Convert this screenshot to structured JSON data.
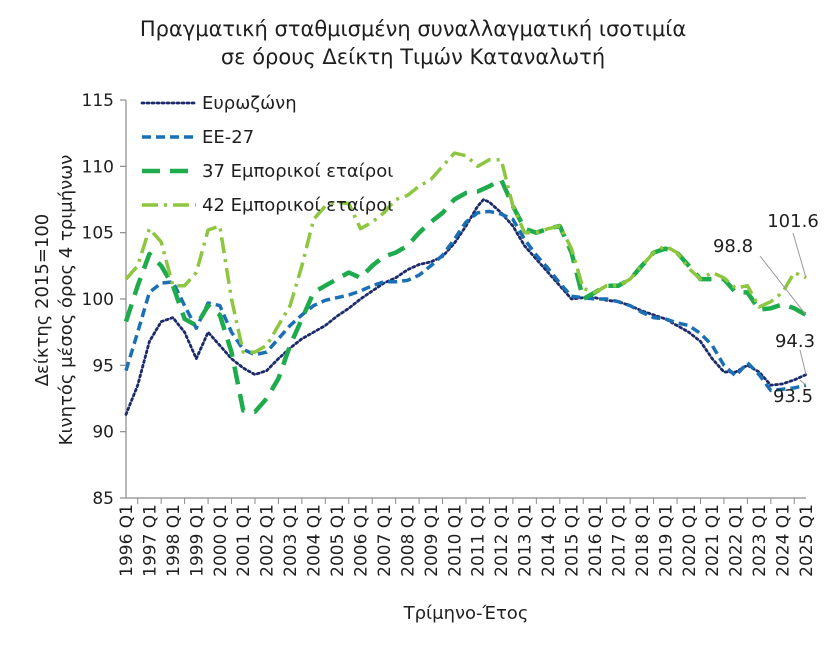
{
  "chart_data": {
    "type": "line",
    "title_lines": [
      "Πραγματική σταθμισμένη συναλλαγματική ισοτιμία",
      "σε όρους Δείκτη Τιμών Καταναλωτή"
    ],
    "ylabel_lines": [
      "Δείκτης 2015=100",
      "Κινητός μέσος όρος 4 τριμήνων"
    ],
    "xlabel": "Τρίμηνο-Έτος",
    "ylim": [
      85,
      115
    ],
    "yticks": [
      85,
      90,
      95,
      100,
      105,
      110,
      115
    ],
    "xlim": [
      1996.0,
      2025.0
    ],
    "x_ticks": [
      1996,
      1997,
      1998,
      1999,
      2000,
      2001,
      2002,
      2003,
      2004,
      2005,
      2006,
      2007,
      2008,
      2009,
      2010,
      2011,
      2012,
      2013,
      2014,
      2015,
      2016,
      2017,
      2018,
      2019,
      2020,
      2021,
      2022,
      2023,
      2024,
      2025
    ],
    "x_tick_suffix": " Q1",
    "grid": false,
    "legend_position": "top-left",
    "series": [
      {
        "name": "Ευρωζώνη",
        "color": "#1b2a6b",
        "dash": "dotted",
        "x": [
          1996.0,
          1996.5,
          1997.0,
          1997.5,
          1998.0,
          1998.5,
          1999.0,
          1999.5,
          2000.0,
          2000.5,
          2001.0,
          2001.5,
          2002.0,
          2002.5,
          2003.0,
          2003.5,
          2004.0,
          2004.5,
          2005.0,
          2005.5,
          2006.0,
          2006.5,
          2007.0,
          2007.5,
          2008.0,
          2008.5,
          2009.0,
          2009.5,
          2010.0,
          2010.5,
          2011.0,
          2011.25,
          2011.5,
          2012.0,
          2012.5,
          2013.0,
          2013.5,
          2014.0,
          2014.5,
          2015.0,
          2015.5,
          2016.0,
          2016.5,
          2017.0,
          2017.5,
          2018.0,
          2018.5,
          2019.0,
          2019.5,
          2020.0,
          2020.5,
          2021.0,
          2021.5,
          2022.0,
          2022.5,
          2023.0,
          2023.5,
          2024.0,
          2024.5,
          2025.0
        ],
        "values": [
          91.3,
          93.5,
          96.8,
          98.3,
          98.6,
          97.5,
          95.5,
          97.5,
          96.5,
          95.5,
          94.8,
          94.3,
          94.6,
          95.5,
          96.3,
          97.0,
          97.5,
          98.0,
          98.7,
          99.3,
          100.0,
          100.6,
          101.2,
          101.6,
          102.2,
          102.6,
          102.8,
          103.2,
          104.2,
          105.5,
          107.0,
          107.5,
          107.3,
          106.5,
          105.5,
          104.0,
          103.0,
          102.0,
          101.0,
          100.0,
          100.1,
          100.1,
          99.9,
          99.8,
          99.5,
          99.1,
          98.8,
          98.5,
          98.0,
          97.5,
          96.8,
          95.5,
          94.5,
          94.5,
          95.0,
          94.5,
          93.5,
          93.6,
          93.9,
          94.3
        ]
      },
      {
        "name": "ΕΕ-27",
        "color": "#1a6fb5",
        "dash": "dashed",
        "x": [
          1996.0,
          1996.5,
          1997.0,
          1997.5,
          1998.0,
          1998.5,
          1999.0,
          1999.5,
          2000.0,
          2000.5,
          2001.0,
          2001.5,
          2002.0,
          2002.5,
          2003.0,
          2003.5,
          2004.0,
          2004.5,
          2005.0,
          2005.5,
          2006.0,
          2006.5,
          2007.0,
          2007.5,
          2008.0,
          2008.5,
          2009.0,
          2009.5,
          2010.0,
          2010.5,
          2011.0,
          2011.5,
          2012.0,
          2012.5,
          2013.0,
          2013.5,
          2014.0,
          2014.5,
          2015.0,
          2015.5,
          2016.0,
          2016.5,
          2017.0,
          2017.5,
          2018.0,
          2018.5,
          2019.0,
          2019.5,
          2020.0,
          2020.5,
          2021.0,
          2021.5,
          2022.0,
          2022.5,
          2023.0,
          2023.5,
          2024.0,
          2024.5,
          2025.0
        ],
        "values": [
          94.6,
          97.5,
          100.5,
          101.2,
          101.3,
          99.5,
          97.8,
          99.7,
          99.5,
          97.5,
          96.2,
          95.8,
          96.0,
          97.0,
          98.0,
          98.8,
          99.5,
          99.9,
          100.1,
          100.3,
          100.6,
          101.0,
          101.3,
          101.3,
          101.4,
          101.8,
          102.5,
          103.3,
          104.5,
          105.8,
          106.5,
          106.6,
          106.4,
          106.0,
          104.5,
          103.3,
          102.3,
          101.2,
          100.2,
          100.1,
          100.0,
          100.0,
          99.8,
          99.5,
          99.0,
          98.6,
          98.5,
          98.2,
          98.0,
          97.4,
          96.5,
          95.0,
          94.2,
          95.2,
          94.3,
          93.1,
          93.2,
          93.3,
          93.5
        ]
      },
      {
        "name": "37 Εμπορικοί εταίροι",
        "color": "#1eab4b",
        "dash": "long-dash",
        "x": [
          1996.0,
          1996.5,
          1997.0,
          1997.5,
          1998.0,
          1998.5,
          1999.0,
          1999.5,
          2000.0,
          2000.5,
          2001.0,
          2001.5,
          2002.0,
          2002.5,
          2003.0,
          2003.5,
          2004.0,
          2004.5,
          2005.0,
          2005.5,
          2006.0,
          2006.5,
          2007.0,
          2007.5,
          2008.0,
          2008.5,
          2009.0,
          2009.5,
          2010.0,
          2010.5,
          2011.0,
          2011.5,
          2012.0,
          2012.5,
          2013.0,
          2013.5,
          2014.0,
          2014.5,
          2015.0,
          2015.5,
          2016.0,
          2016.5,
          2017.0,
          2017.5,
          2018.0,
          2018.5,
          2019.0,
          2019.5,
          2020.0,
          2020.5,
          2021.0,
          2021.5,
          2022.0,
          2022.5,
          2023.0,
          2023.5,
          2024.0,
          2024.5,
          2025.0
        ],
        "values": [
          98.3,
          101.0,
          103.4,
          102.5,
          101.0,
          98.5,
          98.0,
          99.5,
          98.8,
          96.0,
          91.6,
          91.5,
          92.5,
          94.0,
          96.5,
          98.5,
          100.5,
          101.0,
          101.5,
          102.0,
          101.6,
          102.5,
          103.2,
          103.5,
          104.0,
          105.0,
          105.8,
          106.5,
          107.5,
          108.0,
          108.1,
          108.5,
          109.0,
          107.0,
          105.3,
          105.0,
          105.3,
          105.5,
          103.5,
          100.0,
          100.5,
          101.0,
          101.0,
          101.5,
          102.5,
          103.5,
          103.8,
          103.5,
          102.5,
          101.5,
          101.5,
          101.5,
          100.5,
          100.5,
          99.2,
          99.3,
          99.6,
          99.3,
          98.8
        ]
      },
      {
        "name": "42 Εμπορικοί εταίροι",
        "color": "#8dc63f",
        "dash": "dash-dot",
        "x": [
          1996.0,
          1996.5,
          1997.0,
          1997.5,
          1998.0,
          1998.5,
          1999.0,
          1999.5,
          2000.0,
          2000.5,
          2001.0,
          2001.5,
          2002.0,
          2002.5,
          2003.0,
          2003.5,
          2004.0,
          2004.5,
          2005.0,
          2005.5,
          2006.0,
          2006.5,
          2007.0,
          2007.5,
          2008.0,
          2008.5,
          2009.0,
          2009.5,
          2010.0,
          2010.5,
          2011.0,
          2011.5,
          2012.0,
          2012.5,
          2013.0,
          2013.5,
          2014.0,
          2014.5,
          2015.0,
          2015.5,
          2016.0,
          2016.5,
          2017.0,
          2017.5,
          2018.0,
          2018.5,
          2019.0,
          2019.5,
          2020.0,
          2020.5,
          2021.0,
          2021.5,
          2022.0,
          2022.5,
          2023.0,
          2023.5,
          2024.0,
          2024.5,
          2025.0
        ],
        "values": [
          101.5,
          102.5,
          105.3,
          104.3,
          101.0,
          101.0,
          102.0,
          105.2,
          105.5,
          100.0,
          96.0,
          96.0,
          96.5,
          98.0,
          99.5,
          102.5,
          106.0,
          107.0,
          107.3,
          107.2,
          105.3,
          105.8,
          106.5,
          107.5,
          107.8,
          108.5,
          109.0,
          110.0,
          111.0,
          110.8,
          110.0,
          110.5,
          110.5,
          107.0,
          105.0,
          105.0,
          105.3,
          105.5,
          103.8,
          100.8,
          100.5,
          101.0,
          101.0,
          101.5,
          102.5,
          103.5,
          104.0,
          103.5,
          102.3,
          101.5,
          102.0,
          101.6,
          100.8,
          101.0,
          99.4,
          99.8,
          100.5,
          102.0,
          101.6
        ]
      }
    ],
    "end_labels": [
      {
        "text": "101.6",
        "series": 3
      },
      {
        "text": "98.8",
        "series": 2
      },
      {
        "text": "94.3",
        "series": 0
      },
      {
        "text": "93.5",
        "series": 1
      }
    ]
  }
}
